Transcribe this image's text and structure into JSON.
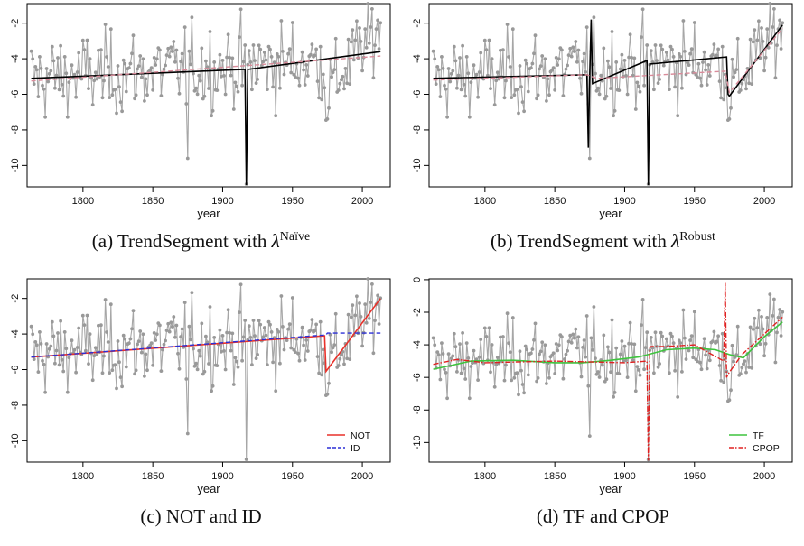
{
  "figure": {
    "captions": [
      {
        "prefix": "(a) TrendSegment with ",
        "lambda": "λ",
        "sup": "Naïve"
      },
      {
        "prefix": "(b) TrendSegment with ",
        "lambda": "λ",
        "sup": "Robust"
      },
      {
        "prefix": "(c) NOT and ID",
        "lambda": "",
        "sup": ""
      },
      {
        "prefix": "(d) TF and CPOP",
        "lambda": "",
        "sup": ""
      }
    ]
  },
  "colors": {
    "data": "#a6a6a6",
    "black_fit": "#000000",
    "pink_dashed": "#d98b9a",
    "not_red": "#e8312a",
    "id_blue": "#2b2fd6",
    "tf_green": "#3ec43e",
    "cpop_red": "#e02020"
  },
  "chart_data": [
    {
      "type": "line",
      "xlabel": "year",
      "ylabel": "",
      "xlim": [
        1760,
        2020
      ],
      "ylim": [
        -11.2,
        -0.9
      ],
      "xticks": [
        1800,
        1850,
        1900,
        1950,
        2000
      ],
      "yticks": [
        -10,
        -8,
        -6,
        -4,
        -2
      ],
      "legend": [],
      "series": [
        {
          "role": "data"
        },
        {
          "style": "solid",
          "color": "#000000",
          "x": [
            1763,
            1916,
            1917,
            1918,
            2013
          ],
          "y": [
            -5.1,
            -4.6,
            -11.1,
            -4.6,
            -3.6
          ]
        },
        {
          "style": "dashed",
          "color": "#d98b9a",
          "x": [
            1763,
            2013
          ],
          "y": [
            -5.25,
            -3.85
          ]
        }
      ]
    },
    {
      "type": "line",
      "xlabel": "year",
      "ylabel": "",
      "xlim": [
        1760,
        2020
      ],
      "ylim": [
        -11.2,
        -0.9
      ],
      "xticks": [
        1800,
        1850,
        1900,
        1950,
        2000
      ],
      "yticks": [
        -10,
        -8,
        -6,
        -4,
        -2
      ],
      "legend": [],
      "series": [
        {
          "role": "data"
        },
        {
          "style": "solid",
          "color": "#000000",
          "x": [
            1763,
            1873,
            1874,
            1875,
            1876,
            1877,
            1916,
            1917,
            1918,
            1973,
            1974,
            1975,
            2013
          ],
          "y": [
            -5.1,
            -4.9,
            -9.0,
            -4.9,
            -1.8,
            -5.4,
            -4.1,
            -11.1,
            -4.3,
            -3.9,
            -6.0,
            -6.1,
            -2.1
          ]
        },
        {
          "style": "dashed",
          "color": "#d98b9a",
          "x": [
            1763,
            1873,
            1880,
            1972,
            1975,
            2013
          ],
          "y": [
            -5.2,
            -4.9,
            -5.1,
            -4.7,
            -5.9,
            -2.3
          ]
        }
      ]
    },
    {
      "type": "line",
      "xlabel": "year",
      "ylabel": "",
      "xlim": [
        1760,
        2020
      ],
      "ylim": [
        -11.2,
        -0.9
      ],
      "xticks": [
        1800,
        1850,
        1900,
        1950,
        2000
      ],
      "yticks": [
        -10,
        -8,
        -6,
        -4,
        -2
      ],
      "legend": [
        {
          "label": "NOT",
          "color": "#e8312a",
          "style": "solid"
        },
        {
          "label": "ID",
          "color": "#2b2fd6",
          "style": "dashed"
        }
      ],
      "legend_position": "bottom-right",
      "series": [
        {
          "role": "data"
        },
        {
          "name": "NOT",
          "style": "solid",
          "color": "#e8312a",
          "x": [
            1763,
            1973,
            1974,
            2013
          ],
          "y": [
            -5.3,
            -4.1,
            -6.1,
            -2.0
          ]
        },
        {
          "name": "ID",
          "style": "dashed",
          "color": "#2b2fd6",
          "x": [
            1763,
            1974,
            1975,
            2013
          ],
          "y": [
            -5.3,
            -4.05,
            -3.95,
            -3.95
          ]
        }
      ]
    },
    {
      "type": "line",
      "xlabel": "year",
      "ylabel": "",
      "xlim": [
        1760,
        2020
      ],
      "ylim": [
        -11.2,
        0.05
      ],
      "xticks": [
        1800,
        1850,
        1900,
        1950,
        2000
      ],
      "yticks": [
        -10,
        -8,
        -6,
        -4,
        -2,
        0
      ],
      "legend": [
        {
          "label": "TF",
          "color": "#3ec43e",
          "style": "solid"
        },
        {
          "label": "CPOP",
          "color": "#e02020",
          "style": "dotdash"
        }
      ],
      "legend_position": "bottom-right",
      "series": [
        {
          "role": "data"
        },
        {
          "name": "TF",
          "style": "solid",
          "color": "#3ec43e",
          "x": [
            1763,
            1790,
            1820,
            1850,
            1870,
            1890,
            1910,
            1930,
            1950,
            1965,
            1975,
            1985,
            2000,
            2013
          ],
          "y": [
            -5.5,
            -5.0,
            -4.95,
            -5.1,
            -5.1,
            -4.95,
            -4.75,
            -4.3,
            -4.2,
            -4.3,
            -4.6,
            -4.8,
            -3.5,
            -2.6
          ]
        },
        {
          "name": "CPOP",
          "style": "dotdash",
          "color": "#e02020",
          "x": [
            1763,
            1780,
            1800,
            1850,
            1900,
            1916,
            1917,
            1918,
            1919,
            1930,
            1950,
            1971,
            1972,
            1973,
            1974,
            1984,
            2013
          ],
          "y": [
            -5.2,
            -4.9,
            -5.1,
            -5.0,
            -5.1,
            -5.0,
            -11.1,
            -4.2,
            -4.1,
            -4.1,
            -4.0,
            -5.0,
            -0.2,
            -6.0,
            -5.8,
            -4.6,
            -2.3
          ]
        }
      ]
    }
  ]
}
